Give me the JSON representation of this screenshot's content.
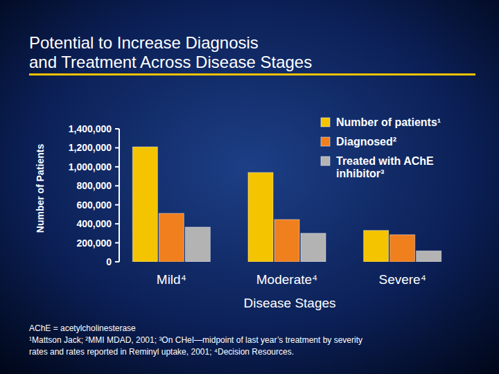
{
  "chart_data": {
    "type": "bar",
    "title": [
      "Potential to Increase Diagnosis",
      "and Treatment Across Disease Stages"
    ],
    "y_label": "Number of Patients",
    "x_label": "Disease Stages",
    "categories": [
      "Mild⁴",
      "Moderate⁴",
      "Severe⁴"
    ],
    "series": [
      {
        "name": "Number of patients¹",
        "color": "#f5c400",
        "values": [
          1210000,
          940000,
          330000
        ]
      },
      {
        "name": "Diagnosed²",
        "color": "#f07f1e",
        "values": [
          510000,
          445000,
          285000
        ]
      },
      {
        "name": "Treated with AChE inhibitor³",
        "color": "#b3b3b3",
        "values": [
          365000,
          300000,
          115000
        ]
      }
    ],
    "ylim": [
      0,
      1400000
    ],
    "yticks": [
      0,
      {
        "value": 200000,
        "label": "200,000"
      },
      {
        "value": 400000,
        "label": "400,000"
      },
      {
        "value": 600000,
        "label": "600,000"
      },
      {
        "value": 800000,
        "label": "800,000"
      },
      {
        "value": 1000000,
        "label": "1,000,000"
      },
      {
        "value": 1200000,
        "label": "1,200,000"
      },
      {
        "value": 1400000,
        "label": "1,400,000"
      }
    ],
    "grid": false,
    "legend": "top-right",
    "footnotes": [
      "AChE = acetylcholinesterase",
      "¹Mattson Jack; ²MMI MDAD, 2001; ³On CHeI—midpoint of last year’s treatment by severity",
      "rates and rates reported in Reminyl uptake, 2001; ⁴Decision Resources."
    ]
  }
}
